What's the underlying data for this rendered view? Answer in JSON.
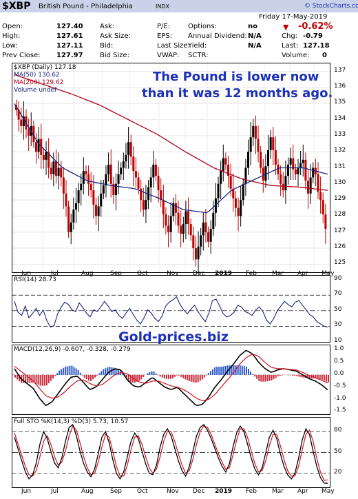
{
  "header": {
    "symbol": "$XBP",
    "name": "British Pound - Philadelphia",
    "exchange": "INDX",
    "date": "Friday  17-May-2019",
    "change_pct": "-0.62%",
    "copyright": "© StockCharts.com",
    "rows": [
      {
        "l1": "Open:",
        "v1": "127.40",
        "l2": "Ask:",
        "v2": "",
        "l3": "P/E:",
        "v3": "",
        "l4": "Options:",
        "v4": "no",
        "l5": "",
        "v5": ""
      },
      {
        "l1": "High:",
        "v1": "127.61",
        "l2": "Ask Size:",
        "v2": "",
        "l3": "EPS:",
        "v3": "",
        "l4": "Annual Dividend:",
        "v4": "N/A",
        "l5": "Chg:",
        "v5": "-0.79"
      },
      {
        "l1": "Low:",
        "v1": "127.11",
        "l2": "Bid:",
        "v2": "",
        "l3": "Last Size:",
        "v3": "",
        "l4": "Yield:",
        "v4": "N/A",
        "l5": "Last:",
        "v5": "127.18"
      },
      {
        "l1": "Prev Close:",
        "v1": "127.97",
        "l2": "Bid Size:",
        "v2": "",
        "l3": "VWAP:",
        "v3": "",
        "l4": "SCTR:",
        "v4": "",
        "l5": "Volume:",
        "v5": "0"
      }
    ]
  },
  "colors": {
    "price_down": "#c00000",
    "price_up": "#000000",
    "ma50": "#1a237e",
    "ma200": "#b00018",
    "accent": "#1c30b8",
    "header_bg": "#c9d2e8"
  },
  "annotation": {
    "line1": "The Pound is lower now",
    "line2": "than it was 12 months ago."
  },
  "watermark": "Gold-prices.biz",
  "x_axis": {
    "labels": [
      "Jun",
      "Jul",
      "Aug",
      "Sep",
      "Oct",
      "Nov",
      "Dec",
      "2019",
      "Feb",
      "Mar",
      "Apr",
      "May"
    ]
  },
  "chart_data": [
    {
      "type": "candlestick",
      "panel": "price",
      "legend": [
        "$XBP (Daily) 127.18",
        "MA(50) 130.62",
        "MA(200) 129.62",
        "Volume undef"
      ],
      "ylim": [
        124.5,
        137.5
      ],
      "y_ticks": [
        125,
        126,
        127,
        128,
        129,
        130,
        131,
        132,
        133,
        134,
        135,
        136,
        137
      ],
      "close_series": [
        134.6,
        134.0,
        133.6,
        134.2,
        133.4,
        133.0,
        133.6,
        132.6,
        132.0,
        132.8,
        131.8,
        131.5,
        132.0,
        131.0,
        130.6,
        131.4,
        130.5,
        131.0,
        130.4,
        129.4,
        128.6,
        127.0,
        127.6,
        128.4,
        128.8,
        129.6,
        130.0,
        130.8,
        130.6,
        130.0,
        129.6,
        128.7,
        128.0,
        128.6,
        129.4,
        129.9,
        130.6,
        131.2,
        130.0,
        129.3,
        130.0,
        130.6,
        131.0,
        131.4,
        131.8,
        132.6,
        131.7,
        130.8,
        130.4,
        129.7,
        129.0,
        128.4,
        129.0,
        129.8,
        130.4,
        131.2,
        130.5,
        129.6,
        129.0,
        128.1,
        127.4,
        127.0,
        128.0,
        128.8,
        128.2,
        127.4,
        126.9,
        127.5,
        128.3,
        127.5,
        126.8,
        126.0,
        125.3,
        126.1,
        126.8,
        127.6,
        127.0,
        126.4,
        127.2,
        128.2,
        129.1,
        130.0,
        130.8,
        131.6,
        131.2,
        130.5,
        129.7,
        129.1,
        128.5,
        128.0,
        129.0,
        130.0,
        131.0,
        132.0,
        132.9,
        133.6,
        132.8,
        132.0,
        131.0,
        130.2,
        131.1,
        132.1,
        132.9,
        132.1,
        131.2,
        130.6,
        130.0,
        129.6,
        130.5,
        131.2,
        131.6,
        130.9,
        130.6,
        131.0,
        131.3,
        131.5,
        130.2,
        129.4,
        130.4,
        131.0,
        130.6,
        129.5,
        129.0,
        128.1,
        127.2
      ],
      "ma50_anchors": [
        135.0,
        132.5,
        131.0,
        130.2,
        129.9,
        129.7,
        129.1,
        128.4,
        128.2,
        129.6,
        130.3,
        131.0,
        131.0,
        130.6
      ],
      "ma200_anchors": [
        136.8,
        136.2,
        135.6,
        134.9,
        134.0,
        133.1,
        132.0,
        131.0,
        130.3,
        129.9,
        129.8,
        129.6
      ]
    },
    {
      "type": "line",
      "panel": "rsi",
      "label": "RSI(14) 28.73",
      "ylim": [
        10,
        95
      ],
      "y_ticks": [
        10,
        30,
        50,
        70,
        90
      ],
      "levels": [
        30,
        70
      ],
      "values": [
        62,
        48,
        44,
        56,
        41,
        46,
        53,
        44,
        51,
        37,
        29,
        31,
        46,
        55,
        61,
        58,
        51,
        49,
        60,
        54,
        47,
        42,
        51,
        49,
        55,
        62,
        56,
        49,
        51,
        44,
        40,
        47,
        53,
        45,
        38,
        33,
        41,
        51,
        47,
        40,
        36,
        43,
        56,
        61,
        64,
        68,
        58,
        51,
        46,
        52,
        57,
        49,
        42,
        36,
        47,
        63,
        65,
        56,
        46,
        42,
        44,
        48,
        57,
        55,
        49,
        47,
        44,
        51,
        55,
        49,
        38,
        33,
        40,
        50,
        56,
        62,
        58,
        55,
        61,
        63,
        57,
        51,
        45,
        42,
        36,
        33,
        30,
        29
      ]
    },
    {
      "type": "macd",
      "panel": "macd",
      "label": "MACD(12,26,9) -0.607, -0.328, -0.279",
      "ylim": [
        -1.6,
        1.2
      ],
      "y_ticks": [
        -1.5,
        -1.0,
        -0.5,
        0.0,
        0.5,
        1.0
      ],
      "macd": [
        0.25,
        -0.15,
        -0.35,
        -0.55,
        -0.95,
        -1.25,
        -1.1,
        -0.75,
        -0.4,
        -0.1,
        -0.05,
        -0.3,
        -0.6,
        -0.5,
        -0.2,
        0.1,
        0.25,
        0.2,
        -0.2,
        -0.45,
        -0.5,
        -0.3,
        -0.1,
        -0.3,
        -0.5,
        -0.6,
        -0.5,
        -0.75,
        -1.0,
        -1.25,
        -1.2,
        -0.9,
        -0.5,
        -0.2,
        0.15,
        0.45,
        0.8,
        1.0,
        0.85,
        0.5,
        0.25,
        0.1,
        0.2,
        0.25,
        0.2,
        0.15,
        0.0,
        -0.15,
        -0.25,
        -0.4,
        -0.607
      ],
      "signal": [
        0.35,
        0.15,
        -0.05,
        -0.25,
        -0.55,
        -0.85,
        -0.95,
        -0.9,
        -0.7,
        -0.45,
        -0.25,
        -0.2,
        -0.35,
        -0.45,
        -0.4,
        -0.2,
        0.0,
        0.1,
        0.05,
        -0.15,
        -0.3,
        -0.35,
        -0.25,
        -0.25,
        -0.35,
        -0.45,
        -0.5,
        -0.6,
        -0.75,
        -0.95,
        -1.05,
        -1.0,
        -0.8,
        -0.5,
        -0.2,
        0.1,
        0.45,
        0.7,
        0.85,
        0.75,
        0.5,
        0.3,
        0.25,
        0.25,
        0.22,
        0.2,
        0.1,
        -0.02,
        -0.12,
        -0.22,
        -0.328
      ]
    },
    {
      "type": "line",
      "panel": "stochastic",
      "label": "Full STO %K(14,3) %D(3) 5.73, 10.57",
      "ylim": [
        0,
        100
      ],
      "y_ticks": [
        20,
        50,
        80
      ],
      "levels": [
        20,
        50,
        80
      ],
      "k": [
        72,
        55,
        38,
        22,
        12,
        18,
        35,
        62,
        80,
        70,
        52,
        35,
        28,
        42,
        66,
        86,
        90,
        74,
        52,
        34,
        22,
        15,
        26,
        48,
        72,
        80,
        64,
        40,
        20,
        12,
        22,
        44,
        66,
        78,
        70,
        52,
        34,
        20,
        18,
        32,
        58,
        76,
        84,
        74,
        56,
        38,
        24,
        16,
        30,
        52,
        74,
        86,
        90,
        82,
        70,
        56,
        42,
        30,
        22,
        34,
        58,
        78,
        88,
        80,
        62,
        42,
        26,
        18,
        28,
        50,
        72,
        82,
        70,
        48,
        30,
        18,
        12,
        20,
        42,
        68,
        84,
        76,
        52,
        30,
        14,
        6,
        5.73
      ],
      "d": [
        78,
        62,
        46,
        30,
        18,
        16,
        24,
        44,
        66,
        74,
        62,
        44,
        32,
        36,
        52,
        74,
        88,
        82,
        64,
        44,
        28,
        18,
        20,
        36,
        58,
        76,
        72,
        52,
        30,
        16,
        16,
        32,
        54,
        72,
        74,
        62,
        44,
        28,
        20,
        26,
        44,
        66,
        80,
        80,
        66,
        48,
        32,
        20,
        24,
        40,
        62,
        80,
        88,
        86,
        76,
        62,
        48,
        36,
        26,
        28,
        46,
        68,
        84,
        84,
        72,
        52,
        34,
        22,
        24,
        38,
        60,
        76,
        76,
        60,
        40,
        24,
        16,
        16,
        30,
        54,
        76,
        82,
        66,
        42,
        22,
        10,
        10.57
      ]
    }
  ]
}
